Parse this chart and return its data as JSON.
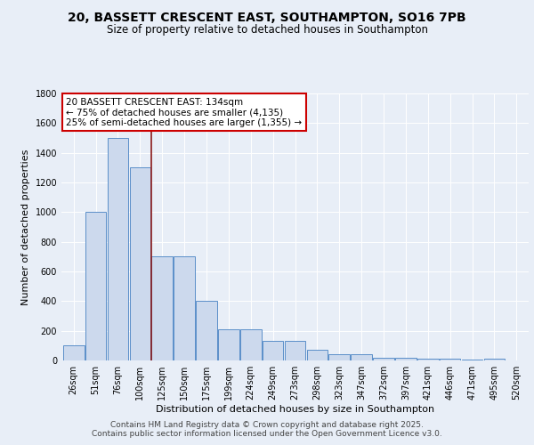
{
  "title_line1": "20, BASSETT CRESCENT EAST, SOUTHAMPTON, SO16 7PB",
  "title_line2": "Size of property relative to detached houses in Southampton",
  "xlabel": "Distribution of detached houses by size in Southampton",
  "ylabel": "Number of detached properties",
  "bar_labels": [
    "26sqm",
    "51sqm",
    "76sqm",
    "100sqm",
    "125sqm",
    "150sqm",
    "175sqm",
    "199sqm",
    "224sqm",
    "249sqm",
    "273sqm",
    "298sqm",
    "323sqm",
    "347sqm",
    "372sqm",
    "397sqm",
    "421sqm",
    "446sqm",
    "471sqm",
    "495sqm",
    "520sqm"
  ],
  "bar_values": [
    100,
    1000,
    1500,
    1300,
    700,
    700,
    400,
    210,
    210,
    130,
    130,
    75,
    40,
    40,
    20,
    20,
    15,
    10,
    5,
    10,
    0
  ],
  "bar_color": "#ccd9ed",
  "bar_edge_color": "#5b8fc9",
  "vline_x": 3.5,
  "vline_color": "#8b1a1a",
  "annotation_text": "20 BASSETT CRESCENT EAST: 134sqm\n← 75% of detached houses are smaller (4,135)\n25% of semi-detached houses are larger (1,355) →",
  "annotation_box_facecolor": "#ffffff",
  "annotation_box_edgecolor": "#cc0000",
  "ylim": [
    0,
    1800
  ],
  "yticks": [
    0,
    200,
    400,
    600,
    800,
    1000,
    1200,
    1400,
    1600,
    1800
  ],
  "bg_color": "#e8eef7",
  "plot_bg_color": "#e8eef7",
  "grid_color": "#ffffff",
  "footer_line1": "Contains HM Land Registry data © Crown copyright and database right 2025.",
  "footer_line2": "Contains public sector information licensed under the Open Government Licence v3.0.",
  "title_fontsize": 10,
  "subtitle_fontsize": 8.5,
  "axis_label_fontsize": 8,
  "tick_fontsize": 7,
  "annotation_fontsize": 7.5,
  "footer_fontsize": 6.5
}
